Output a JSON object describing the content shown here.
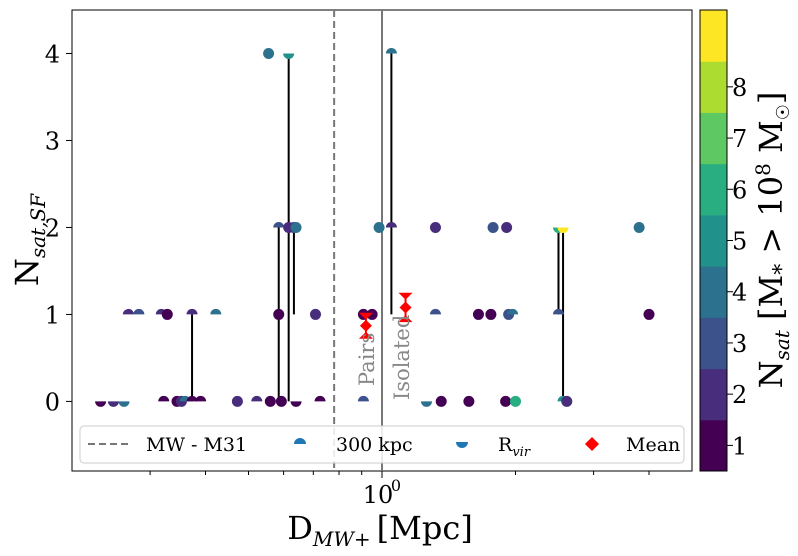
{
  "chart_data": {
    "type": "scatter",
    "title": "",
    "xlabel": "D",
    "xlabel_sub": "MW+",
    "xlabel_unit": "[Mpc]",
    "ylabel": "N",
    "ylabel_sub": "sat,SF",
    "x_scale": "log",
    "xlim": [
      0.2,
      5.0
    ],
    "ylim": [
      -0.8,
      4.5
    ],
    "x_ticks": [
      {
        "value": 1.0,
        "label": "10",
        "sup": "0"
      }
    ],
    "y_ticks": [
      0,
      1,
      2,
      3,
      4
    ],
    "reference_lines": [
      {
        "name": "MW - M31",
        "x": 0.78,
        "style": "dashed"
      },
      {
        "name": "isolation boundary",
        "x": 1.0,
        "style": "solid"
      }
    ],
    "annotations": {
      "pairs": "Pairs",
      "isolated": "Isolated"
    },
    "legend": {
      "placement": "lower-center",
      "entries": [
        {
          "label": "MW - M31",
          "kind": "dashed-line"
        },
        {
          "label": "300 kpc",
          "kind": "upper-half-dot"
        },
        {
          "label": "R",
          "sub": "vir",
          "kind": "lower-half-dot"
        },
        {
          "label": "Mean",
          "kind": "red-diamond"
        }
      ]
    },
    "colorbar": {
      "label": "N",
      "label_sub": "sat",
      "label_rest": " [M",
      "label_sub2": "*",
      "label_rest2": " > 10",
      "label_sup": "8",
      "label_rest3": " M",
      "label_end": "]",
      "ticks": [
        1,
        2,
        3,
        4,
        5,
        6,
        7,
        8
      ],
      "colors": [
        "#440154",
        "#472d7b",
        "#3b528b",
        "#2c728e",
        "#21918c",
        "#28ae80",
        "#5ec962",
        "#addc30",
        "#fde725"
      ]
    },
    "connectors": [
      {
        "x": 0.373,
        "y0": 0,
        "y1": 1
      },
      {
        "x": 0.585,
        "y0": 0,
        "y1": 2
      },
      {
        "x": 0.616,
        "y0": 0,
        "y1": 4
      },
      {
        "x": 0.633,
        "y0": 1,
        "y1": 2
      },
      {
        "x": 1.05,
        "y0": 1,
        "y1": 4
      },
      {
        "x": 2.5,
        "y0": 1,
        "y1": 2
      },
      {
        "x": 2.56,
        "y0": 0,
        "y1": 2
      }
    ],
    "means": [
      {
        "x": 0.92,
        "y": 0.87,
        "yerr": 0.08
      },
      {
        "x": 1.13,
        "y": 1.08,
        "yerr": 0.1
      }
    ],
    "points": [
      {
        "x": 0.232,
        "y": 0,
        "c": 1,
        "m": "lower"
      },
      {
        "x": 0.248,
        "y": 0,
        "c": 2,
        "m": "lower"
      },
      {
        "x": 0.262,
        "y": 0,
        "c": 4,
        "m": "lower"
      },
      {
        "x": 0.268,
        "y": 1,
        "c": 2,
        "m": "upper"
      },
      {
        "x": 0.283,
        "y": 1,
        "c": 3,
        "m": "upper"
      },
      {
        "x": 0.318,
        "y": 1,
        "c": 2,
        "m": "upper"
      },
      {
        "x": 0.328,
        "y": 1,
        "c": 1,
        "m": "full"
      },
      {
        "x": 0.322,
        "y": 0,
        "c": 1,
        "m": "upper"
      },
      {
        "x": 0.345,
        "y": 0,
        "c": 1,
        "m": "full"
      },
      {
        "x": 0.353,
        "y": 0,
        "c": 2,
        "m": "full"
      },
      {
        "x": 0.36,
        "y": 0,
        "c": 4,
        "m": "upper"
      },
      {
        "x": 0.373,
        "y": 0,
        "c": 1,
        "m": "upper"
      },
      {
        "x": 0.373,
        "y": 1,
        "c": 2,
        "m": "upper"
      },
      {
        "x": 0.39,
        "y": 0,
        "c": 1,
        "m": "upper"
      },
      {
        "x": 0.422,
        "y": 1,
        "c": 4,
        "m": "upper"
      },
      {
        "x": 0.472,
        "y": 0,
        "c": 2,
        "m": "full"
      },
      {
        "x": 0.522,
        "y": 0,
        "c": 2,
        "m": "upper"
      },
      {
        "x": 0.555,
        "y": 4,
        "c": 4,
        "m": "full"
      },
      {
        "x": 0.56,
        "y": 0,
        "c": 1,
        "m": "full"
      },
      {
        "x": 0.585,
        "y": 1,
        "c": 1,
        "m": "full"
      },
      {
        "x": 0.585,
        "y": 2,
        "c": 3,
        "m": "upper"
      },
      {
        "x": 0.593,
        "y": 0,
        "c": 1,
        "m": "full"
      },
      {
        "x": 0.616,
        "y": 4,
        "c": 5,
        "m": "lower"
      },
      {
        "x": 0.616,
        "y": 2,
        "c": 2,
        "m": "full"
      },
      {
        "x": 0.633,
        "y": 2,
        "c": 2,
        "m": "full"
      },
      {
        "x": 0.64,
        "y": 2,
        "c": 4,
        "m": "full"
      },
      {
        "x": 0.64,
        "y": 0,
        "c": 1,
        "m": "lower"
      },
      {
        "x": 0.708,
        "y": 1,
        "c": 2,
        "m": "full"
      },
      {
        "x": 0.725,
        "y": 0,
        "c": 1,
        "m": "upper"
      },
      {
        "x": 0.908,
        "y": 1,
        "c": 1,
        "m": "full"
      },
      {
        "x": 0.908,
        "y": 0,
        "c": 3,
        "m": "upper"
      },
      {
        "x": 0.95,
        "y": 1,
        "c": 1,
        "m": "full"
      },
      {
        "x": 0.985,
        "y": 2,
        "c": 4,
        "m": "full"
      },
      {
        "x": 1.05,
        "y": 4,
        "c": 4,
        "m": "upper"
      },
      {
        "x": 1.05,
        "y": 2,
        "c": 2,
        "m": "upper"
      },
      {
        "x": 1.26,
        "y": 0,
        "c": 4,
        "m": "lower"
      },
      {
        "x": 1.32,
        "y": 2,
        "c": 2,
        "m": "full"
      },
      {
        "x": 1.32,
        "y": 1,
        "c": 3,
        "m": "upper"
      },
      {
        "x": 1.36,
        "y": 0,
        "c": 1,
        "m": "full"
      },
      {
        "x": 1.57,
        "y": 0,
        "c": 1,
        "m": "full"
      },
      {
        "x": 1.65,
        "y": 1,
        "c": 1,
        "m": "full"
      },
      {
        "x": 1.76,
        "y": 1,
        "c": 1,
        "m": "full"
      },
      {
        "x": 1.78,
        "y": 2,
        "c": 3,
        "m": "full"
      },
      {
        "x": 1.9,
        "y": 0,
        "c": 1,
        "m": "full"
      },
      {
        "x": 1.91,
        "y": 2,
        "c": 2,
        "m": "full"
      },
      {
        "x": 1.93,
        "y": 1,
        "c": 3,
        "m": "full"
      },
      {
        "x": 1.97,
        "y": 1,
        "c": 4,
        "m": "upper"
      },
      {
        "x": 2.0,
        "y": 0,
        "c": 6,
        "m": "full"
      },
      {
        "x": 2.5,
        "y": 2,
        "c": 6,
        "m": "lower"
      },
      {
        "x": 2.5,
        "y": 1,
        "c": 3,
        "m": "upper"
      },
      {
        "x": 2.56,
        "y": 2,
        "c": 9,
        "m": "lower"
      },
      {
        "x": 2.56,
        "y": 0,
        "c": 5,
        "m": "upper"
      },
      {
        "x": 2.61,
        "y": 0,
        "c": 2,
        "m": "full"
      },
      {
        "x": 3.8,
        "y": 2,
        "c": 4,
        "m": "full"
      },
      {
        "x": 4.0,
        "y": 1,
        "c": 1,
        "m": "full"
      }
    ]
  }
}
